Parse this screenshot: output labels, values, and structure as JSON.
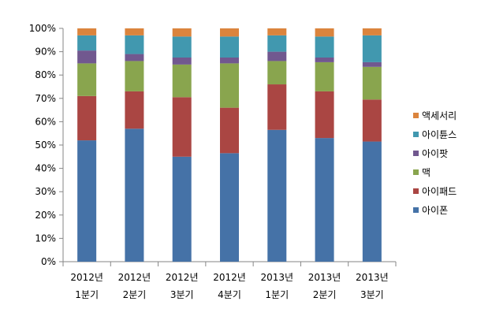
{
  "chart_data": {
    "type": "bar",
    "stacked": true,
    "percent": true,
    "categories": [
      [
        "2012년",
        "1분기"
      ],
      [
        "2012년",
        "2분기"
      ],
      [
        "2012년",
        "3분기"
      ],
      [
        "2012년",
        "4분기"
      ],
      [
        "2013년",
        "1분기"
      ],
      [
        "2013년",
        "2분기"
      ],
      [
        "2013년",
        "3분기"
      ]
    ],
    "series": [
      {
        "name": "아이폰",
        "color": "#4572A7",
        "values": [
          52,
          57,
          45,
          46.5,
          56.5,
          53,
          51.5
        ]
      },
      {
        "name": "아이패드",
        "color": "#AA4643",
        "values": [
          19,
          16,
          25.5,
          19.5,
          19.5,
          20,
          18
        ]
      },
      {
        "name": "맥",
        "color": "#89A54E",
        "values": [
          14,
          13,
          14,
          19,
          10,
          12.5,
          14
        ]
      },
      {
        "name": "아이팟",
        "color": "#71588F",
        "values": [
          5.5,
          3,
          3,
          2.5,
          4,
          2,
          2
        ]
      },
      {
        "name": "아이튠스",
        "color": "#4198AF",
        "values": [
          6.5,
          8,
          9,
          9,
          7,
          9,
          11.5
        ]
      },
      {
        "name": "액세서리",
        "color": "#DB843D",
        "values": [
          3,
          3,
          3.5,
          3.5,
          3,
          3.5,
          3
        ]
      }
    ],
    "yticks": [
      "0%",
      "10%",
      "20%",
      "30%",
      "40%",
      "50%",
      "60%",
      "70%",
      "80%",
      "90%",
      "100%"
    ],
    "ylim": [
      0,
      100
    ],
    "grid": false,
    "legend_position": "right",
    "legend_order": [
      "액세서리",
      "아이튠스",
      "아이팟",
      "맥",
      "아이패드",
      "아이폰"
    ],
    "title": "",
    "xlabel": "",
    "ylabel": ""
  }
}
